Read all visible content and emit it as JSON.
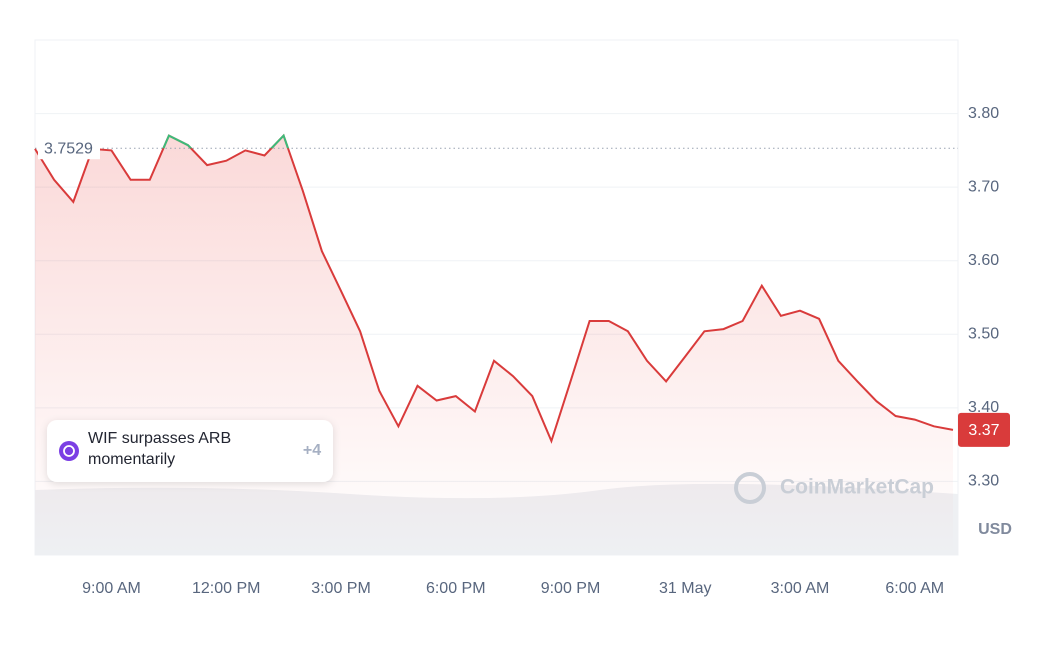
{
  "chart_data": {
    "type": "line",
    "categories": [
      null,
      null,
      null,
      null,
      "9:00 AM",
      null,
      null,
      null,
      null,
      null,
      "12:00 PM",
      null,
      null,
      null,
      null,
      null,
      "3:00 PM",
      null,
      null,
      null,
      null,
      null,
      "6:00 PM",
      null,
      null,
      null,
      null,
      null,
      "9:00 PM",
      null,
      null,
      null,
      null,
      null,
      "31 May",
      null,
      null,
      null,
      null,
      null,
      "3:00 AM",
      null,
      null,
      null,
      null,
      null,
      "6:00 AM",
      null,
      null
    ],
    "values": [
      3.752,
      3.71,
      3.68,
      3.752,
      3.75,
      3.71,
      3.71,
      3.77,
      3.757,
      3.73,
      3.736,
      3.75,
      3.743,
      3.77,
      3.695,
      3.613,
      3.559,
      3.504,
      3.423,
      3.375,
      3.43,
      3.41,
      3.416,
      3.395,
      3.464,
      3.443,
      3.416,
      3.355,
      3.436,
      3.518,
      3.518,
      3.504,
      3.464,
      3.436,
      3.47,
      3.504,
      3.507,
      3.518,
      3.566,
      3.525,
      3.532,
      3.521,
      3.464,
      3.436,
      3.409,
      3.389,
      3.384,
      3.375,
      3.37
    ],
    "up_color": "#3dbb7a",
    "down_color": "#d93b3b",
    "reference": 3.7529,
    "ylim": [
      3.2,
      3.9
    ],
    "yticks": [
      {
        "value": 3.3,
        "label": "3.30"
      },
      {
        "value": 3.4,
        "label": "3.40"
      },
      {
        "value": 3.5,
        "label": "3.50"
      },
      {
        "value": 3.6,
        "label": "3.60"
      },
      {
        "value": 3.7,
        "label": "3.70"
      },
      {
        "value": 3.8,
        "label": "3.80"
      }
    ],
    "grid": true,
    "currency": "USD",
    "watermark": "CoinMarketCap",
    "annotation": {
      "text": "WIF surpasses ARB momentarily",
      "more": "+4"
    }
  }
}
